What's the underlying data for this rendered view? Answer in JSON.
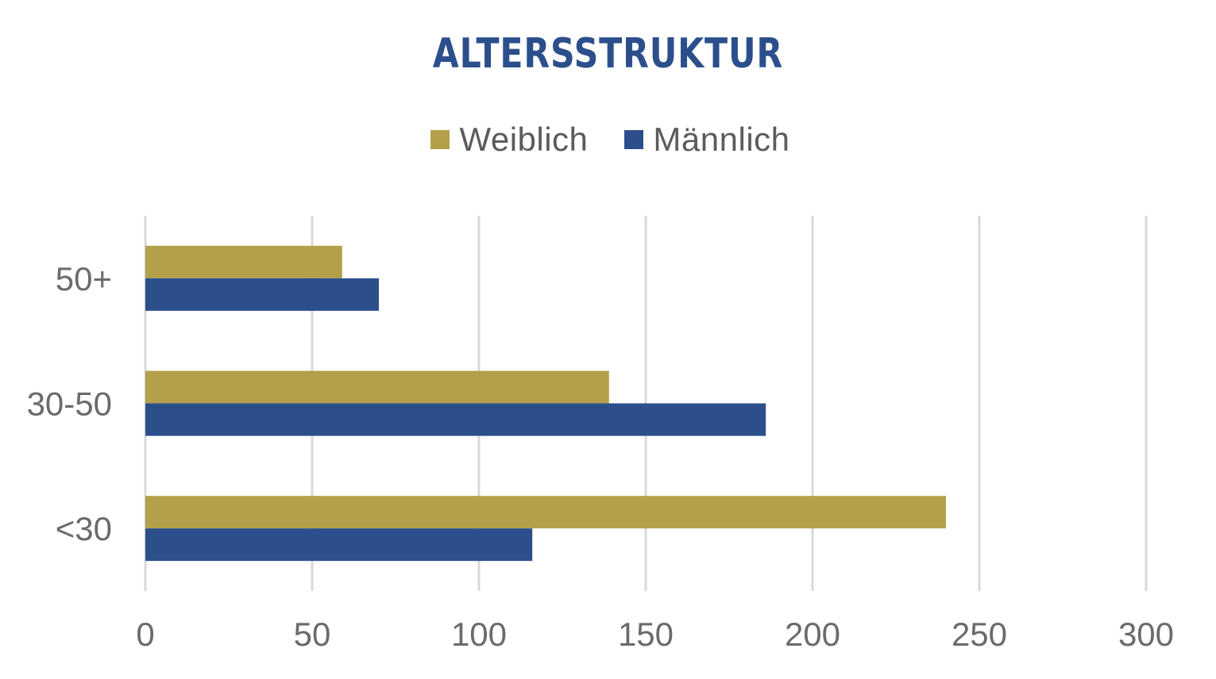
{
  "chart_data": {
    "type": "bar",
    "orientation": "horizontal",
    "title": "ALTERSSTRUKTUR",
    "categories": [
      "50+",
      "30-50",
      "<30"
    ],
    "series": [
      {
        "name": "Weiblich",
        "color": "#b3a04b",
        "values": [
          59,
          139,
          240
        ]
      },
      {
        "name": "Männlich",
        "color": "#2c4f8c",
        "values": [
          70,
          186,
          116
        ]
      }
    ],
    "xlim": [
      0,
      300
    ],
    "xticks": [
      0,
      50,
      100,
      150,
      200,
      250,
      300
    ],
    "xtick_labels": [
      "0",
      "50",
      "100",
      "150",
      "200",
      "250",
      "300"
    ],
    "grid": true,
    "legend_position": "top"
  }
}
